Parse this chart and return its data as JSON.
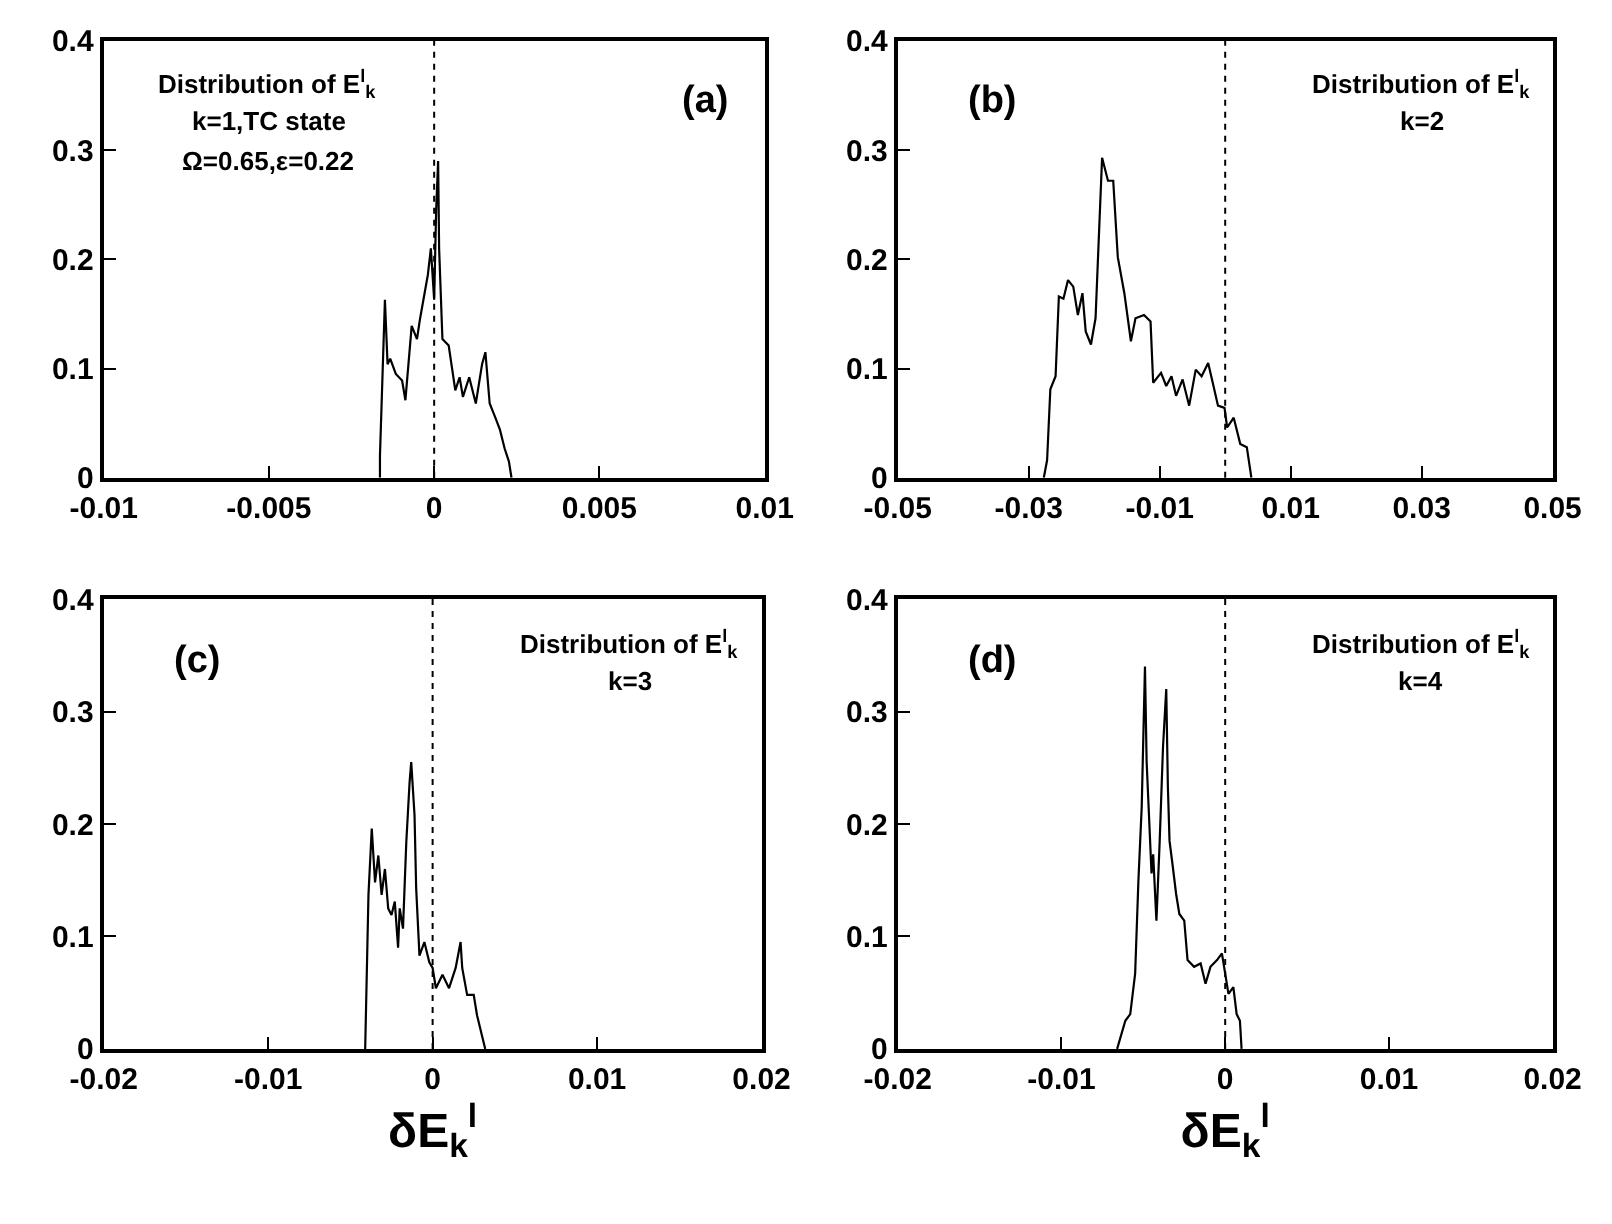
{
  "chart_data": [
    {
      "type": "line",
      "annotations": [
        "(a)",
        "Distribution of E$^{l}$$_{k}$",
        "k=1,TC state",
        "Ω=0.65,ε=0.22"
      ],
      "xlim": [
        -0.01,
        0.01
      ],
      "xticks": [
        -0.01,
        -0.005,
        0,
        0.005,
        0.01
      ],
      "ylim": [
        0,
        0.4
      ],
      "yticks": [
        0,
        0.1,
        0.2,
        0.3,
        0.4
      ],
      "ref_lines": [
        {
          "axis": "x",
          "value": 0,
          "color": "#000000",
          "line_style": "dotted"
        }
      ],
      "series": [
        {
          "color": "#000000",
          "x": [
            -0.00164,
            -0.00164,
            -0.00149,
            -0.00141,
            -0.00133,
            -0.00116,
            -0.00097,
            -0.00087,
            -0.00068,
            -0.00052,
            -0.00043,
            -0.00029,
            -0.00019,
            -0.0001,
            0,
            6e-05,
            0.00012,
            0.00015,
            0.00025,
            0.00044,
            0.00064,
            0.00077,
            0.00087,
            0.00106,
            0.00126,
            0.00145,
            0.00155,
            0.00168,
            0.00184,
            0.00199,
            0.00213,
            0.00226,
            0.00234
          ],
          "values": [
            0,
            0.02,
            0.163,
            0.104,
            0.109,
            0.095,
            0.089,
            0.071,
            0.139,
            0.127,
            0.145,
            0.169,
            0.186,
            0.21,
            0.163,
            0.245,
            0.29,
            0.21,
            0.127,
            0.121,
            0.08,
            0.092,
            0.074,
            0.092,
            0.068,
            0.104,
            0.115,
            0.068,
            0.056,
            0.044,
            0.027,
            0.015,
            0
          ]
        }
      ]
    },
    {
      "type": "line",
      "annotations": [
        "(b)",
        "Distribution of E$^{l}$$_{k}$",
        "k=2"
      ],
      "xlim": [
        -0.05,
        0.05
      ],
      "xticks": [
        -0.05,
        -0.03,
        -0.01,
        0.01,
        0.03,
        0.05
      ],
      "ylim": [
        0,
        0.4
      ],
      "yticks": [
        0,
        0.1,
        0.2,
        0.3,
        0.4
      ],
      "ref_lines": [
        {
          "axis": "x",
          "value": 0,
          "color": "#000000",
          "line_style": "dotted"
        }
      ],
      "series": [
        {
          "color": "#000000",
          "x": [
            -0.0277,
            -0.0272,
            -0.0267,
            -0.0259,
            -0.0254,
            -0.0247,
            -0.024,
            -0.0232,
            -0.0225,
            -0.0218,
            -0.0213,
            -0.0205,
            -0.0198,
            -0.0188,
            -0.0179,
            -0.0171,
            -0.0164,
            -0.0154,
            -0.0144,
            -0.0137,
            -0.0124,
            -0.0114,
            -0.011,
            -0.0098,
            -0.009,
            -0.0082,
            -0.0075,
            -0.0065,
            -0.0055,
            -0.0045,
            -0.0036,
            -0.0026,
            -0.0019,
            -0.0011,
            -0.0001,
            0.0003,
            0.0013,
            0.0023,
            0.0033,
            0.004
          ],
          "values": [
            0,
            0.016,
            0.081,
            0.093,
            0.166,
            0.164,
            0.181,
            0.175,
            0.149,
            0.169,
            0.134,
            0.122,
            0.146,
            0.293,
            0.272,
            0.272,
            0.202,
            0.169,
            0.125,
            0.146,
            0.149,
            0.143,
            0.087,
            0.096,
            0.084,
            0.093,
            0.075,
            0.09,
            0.066,
            0.099,
            0.093,
            0.105,
            0.087,
            0.066,
            0.064,
            0.046,
            0.055,
            0.031,
            0.028,
            0
          ]
        }
      ]
    },
    {
      "type": "line",
      "xlabel": "δE$_{k}$$^{l}$",
      "annotations": [
        "(c)",
        "Distribution of E$^{l}$$_{k}$",
        "k=3"
      ],
      "xlim": [
        -0.02,
        0.02
      ],
      "xticks": [
        -0.02,
        -0.01,
        0,
        0.01,
        0.02
      ],
      "ylim": [
        0,
        0.4
      ],
      "yticks": [
        0,
        0.1,
        0.2,
        0.3,
        0.4
      ],
      "ref_lines": [
        {
          "axis": "x",
          "value": 0,
          "color": "#000000",
          "line_style": "dotted"
        }
      ],
      "series": [
        {
          "color": "#000000",
          "x": [
            -0.0041,
            -0.0039,
            -0.0037,
            -0.0035,
            -0.0033,
            -0.0031,
            -0.0029,
            -0.0027,
            -0.0025,
            -0.0023,
            -0.0021,
            -0.002,
            -0.0018,
            -0.0016,
            -0.0014,
            -0.0013,
            -0.0011,
            -0.001,
            -0.0008,
            -0.0005,
            -0.0002,
            0,
            0.0002,
            0.0006,
            0.001,
            0.0014,
            0.0017,
            0.0018,
            0.0021,
            0.0025,
            0.0027,
            0.0029,
            0.0032
          ],
          "values": [
            0,
            0.137,
            0.196,
            0.148,
            0.172,
            0.137,
            0.16,
            0.125,
            0.119,
            0.131,
            0.09,
            0.125,
            0.107,
            0.184,
            0.237,
            0.255,
            0.208,
            0.143,
            0.083,
            0.095,
            0.077,
            0.072,
            0.054,
            0.066,
            0.054,
            0.072,
            0.095,
            0.072,
            0.048,
            0.048,
            0.03,
            0.018,
            0
          ]
        }
      ]
    },
    {
      "type": "line",
      "xlabel": "δE$_{k}$$^{l}$",
      "annotations": [
        "(d)",
        "Distribution of E$^{l}$$_{k}$",
        "k=4"
      ],
      "xlim": [
        -0.02,
        0.02
      ],
      "xticks": [
        -0.02,
        -0.01,
        0,
        0.01,
        0.02
      ],
      "ylim": [
        0,
        0.4
      ],
      "yticks": [
        0,
        0.1,
        0.2,
        0.3,
        0.4
      ],
      "ref_lines": [
        {
          "axis": "x",
          "value": 0,
          "color": "#000000",
          "line_style": "dotted"
        }
      ],
      "series": [
        {
          "color": "#000000",
          "x": [
            -0.0066,
            -0.0061,
            -0.0058,
            -0.0055,
            -0.0053,
            -0.0051,
            -0.0049,
            -0.0048,
            -0.0045,
            -0.0044,
            -0.0042,
            -0.004,
            -0.0038,
            -0.0036,
            -0.0035,
            -0.0034,
            -0.0032,
            -0.003,
            -0.0028,
            -0.0025,
            -0.0023,
            -0.0019,
            -0.0015,
            -0.0012,
            -0.0009,
            -0.0005,
            -0.0002,
            0,
            0.0002,
            0.0005,
            0.0007,
            0.0009,
            0.001
          ],
          "values": [
            0,
            0.025,
            0.031,
            0.067,
            0.15,
            0.215,
            0.34,
            0.256,
            0.156,
            0.173,
            0.114,
            0.185,
            0.268,
            0.32,
            0.233,
            0.185,
            0.162,
            0.138,
            0.12,
            0.114,
            0.079,
            0.073,
            0.076,
            0.058,
            0.073,
            0.079,
            0.085,
            0.067,
            0.049,
            0.055,
            0.031,
            0.025,
            0
          ]
        }
      ]
    }
  ]
}
